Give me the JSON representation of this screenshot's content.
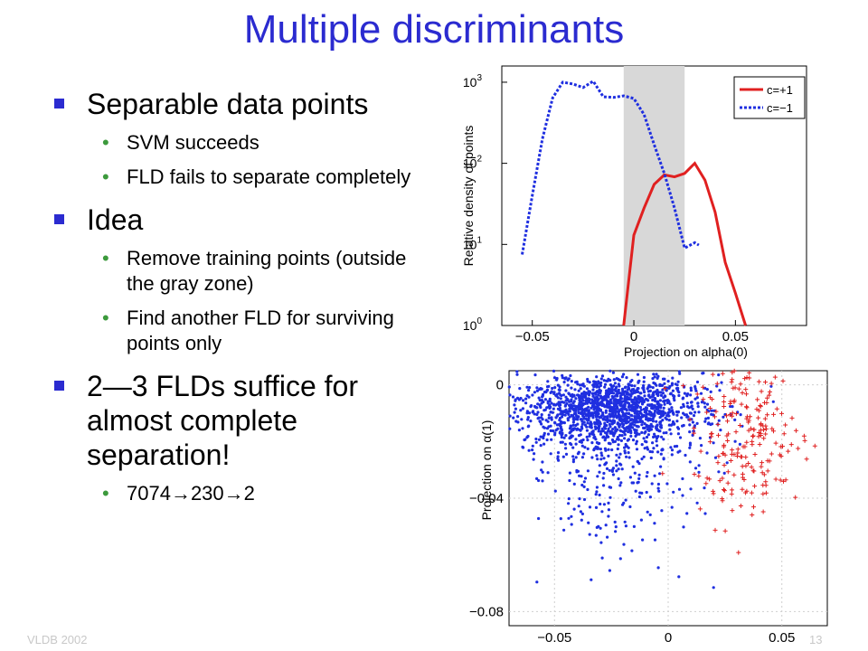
{
  "slide": {
    "title": "Multiple discriminants",
    "bullets": [
      {
        "text": "Separable data points",
        "sub": [
          "SVM succeeds",
          "FLD fails to separate completely"
        ]
      },
      {
        "text": "Idea",
        "sub": [
          "Remove training points (outside the gray zone)",
          "Find another FLD for surviving points only"
        ]
      },
      {
        "text": "2—3 FLDs suffice for almost complete separation!",
        "sub": [
          "7074→230→2"
        ]
      }
    ],
    "footer_left": "VLDB 2002",
    "footer_right": "13"
  },
  "colors": {
    "title": "#2b2bd0",
    "bullet_square": "#2b2bd0",
    "sub_bullet": "#3c9a3c",
    "pos_class": "#e02020",
    "neg_class": "#1f2fe0",
    "gray_zone": "#d8d8d8"
  },
  "chart_data": [
    {
      "type": "line",
      "xlabel": "Projection on alpha(0)",
      "ylabel": "Relative density of points",
      "xlim": [
        -0.065,
        0.085
      ],
      "ylim_log10": [
        0,
        3.2
      ],
      "y_scale": "log",
      "x_ticks": [
        {
          "v": -0.05,
          "label": "−0.05"
        },
        {
          "v": 0,
          "label": "0"
        },
        {
          "v": 0.05,
          "label": "0.05"
        }
      ],
      "y_ticks": [
        {
          "e": 0,
          "label": "10"
        },
        {
          "e": 1,
          "label": "10"
        },
        {
          "e": 2,
          "label": "10"
        },
        {
          "e": 3,
          "label": "10"
        }
      ],
      "gray_zone": [
        -0.005,
        0.025
      ],
      "legend_position": "top-right",
      "series": [
        {
          "name": "c=+1",
          "style": "solid",
          "color": "#e02020",
          "points": [
            [
              -0.005,
              1
            ],
            [
              0,
              13
            ],
            [
              0.005,
              28
            ],
            [
              0.01,
              55
            ],
            [
              0.015,
              72
            ],
            [
              0.02,
              68
            ],
            [
              0.025,
              75
            ],
            [
              0.03,
              100
            ],
            [
              0.035,
              62
            ],
            [
              0.04,
              25
            ],
            [
              0.045,
              6
            ],
            [
              0.05,
              2.5
            ],
            [
              0.055,
              1
            ]
          ]
        },
        {
          "name": "c=−1",
          "style": "dotted",
          "color": "#1f2fe0",
          "points": [
            [
              -0.055,
              7.5
            ],
            [
              -0.05,
              40
            ],
            [
              -0.045,
              200
            ],
            [
              -0.04,
              640
            ],
            [
              -0.035,
              1000
            ],
            [
              -0.03,
              950
            ],
            [
              -0.025,
              860
            ],
            [
              -0.02,
              1030
            ],
            [
              -0.015,
              660
            ],
            [
              -0.01,
              650
            ],
            [
              -0.005,
              680
            ],
            [
              0,
              630
            ],
            [
              0.005,
              400
            ],
            [
              0.01,
              170
            ],
            [
              0.015,
              75
            ],
            [
              0.02,
              28
            ],
            [
              0.025,
              9
            ],
            [
              0.03,
              10.5
            ],
            [
              0.032,
              9.8
            ]
          ]
        }
      ]
    },
    {
      "type": "scatter",
      "ylabel": "Projection on α(1)",
      "xlim": [
        -0.07,
        0.07
      ],
      "ylim": [
        -0.085,
        0.005
      ],
      "x_ticks": [
        {
          "v": -0.05,
          "label": "−0.05"
        },
        {
          "v": 0,
          "label": "0"
        },
        {
          "v": 0.05,
          "label": "0.05"
        }
      ],
      "y_ticks": [
        {
          "v": 0,
          "label": "0"
        },
        {
          "v": -0.04,
          "label": "−0.04"
        },
        {
          "v": -0.08,
          "label": "−0.08"
        }
      ],
      "grid": true,
      "series": [
        {
          "name": "c=−1",
          "marker": "dot",
          "color": "#1f2fe0",
          "center": [
            -0.025,
            -0.008
          ],
          "spread": [
            0.02,
            0.006
          ],
          "count": 1800
        },
        {
          "name": "c=+1",
          "marker": "plus",
          "color": "#e02020",
          "center": [
            0.035,
            -0.018
          ],
          "spread": [
            0.012,
            0.014
          ],
          "count": 220
        }
      ]
    }
  ]
}
